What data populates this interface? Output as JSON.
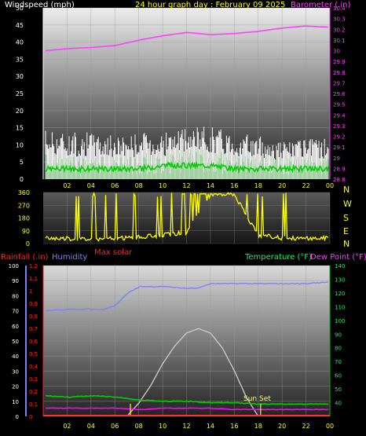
{
  "header": {
    "left_label": "Windspeed (mph)",
    "title": "24 hour graph day : February 09 2025",
    "right_label": "Barometer (.in)"
  },
  "colors": {
    "wind": "#ffffff",
    "gust_fill": "#c8c8c8",
    "avg_wind": "#00c800",
    "barometer": "#ff40ff",
    "direction": "#ffff00",
    "humidity": "#8080ff",
    "temperature": "#00c000",
    "dewpoint": "#ff00ff",
    "rain": "#ff3333",
    "solar": "#c8c8c8",
    "x_ticks": "#ffff00"
  },
  "chart_data": [
    {
      "type": "line",
      "id": "wind_baro",
      "xlabels": [
        "02",
        "04",
        "06",
        "08",
        "10",
        "12",
        "14",
        "16",
        "18",
        "20",
        "22",
        "00"
      ],
      "y_left": {
        "label": "Windspeed (mph)",
        "ticks": [
          0,
          5,
          10,
          15,
          20,
          25,
          30,
          35,
          40,
          45,
          50
        ],
        "lim": [
          0,
          50
        ]
      },
      "y_right": {
        "label": "Barometer (.in)",
        "ticks": [
          "28.8",
          "28.9",
          "29",
          "29.1",
          "29.2",
          "29.3",
          "29.4",
          "29.5",
          "29.6",
          "29.7",
          "29.8",
          "29.9",
          "30",
          "30.1",
          "30.2",
          "30.3",
          "30.4"
        ],
        "lim": [
          28.8,
          30.4
        ]
      },
      "series": [
        {
          "key": "gust",
          "x": [
            0,
            2,
            4,
            6,
            8,
            10,
            12,
            14,
            16,
            18,
            20,
            22,
            24
          ],
          "values": [
            13,
            12,
            12,
            11,
            12,
            12,
            13,
            14,
            12,
            11,
            10,
            10,
            11
          ]
        },
        {
          "key": "wind",
          "x": [
            0,
            2,
            4,
            6,
            8,
            10,
            12,
            14,
            16,
            18,
            20,
            22,
            24
          ],
          "values": [
            7,
            6,
            6,
            6,
            7,
            7,
            8,
            8,
            7,
            6,
            6,
            6,
            6
          ]
        },
        {
          "key": "avg_wind",
          "x": [
            0,
            2,
            4,
            6,
            8,
            10,
            12,
            14,
            16,
            18,
            20,
            22,
            24
          ],
          "values": [
            3,
            3,
            3,
            3,
            3,
            4,
            4,
            4,
            3,
            3,
            3,
            3,
            3
          ]
        },
        {
          "key": "barometer",
          "x": [
            0,
            2,
            4,
            6,
            8,
            10,
            12,
            14,
            16,
            18,
            20,
            22,
            24
          ],
          "values": [
            30.0,
            30.02,
            30.03,
            30.05,
            30.1,
            30.14,
            30.17,
            30.15,
            30.16,
            30.18,
            30.21,
            30.23,
            30.22
          ]
        }
      ]
    },
    {
      "type": "scatter",
      "id": "direction",
      "xlabels": [
        "02",
        "04",
        "06",
        "08",
        "10",
        "12",
        "14",
        "16",
        "18",
        "20",
        "22",
        "00"
      ],
      "y_left": {
        "ticks": [
          0,
          90,
          180,
          270,
          360
        ],
        "lim": [
          0,
          360
        ]
      },
      "y_right": {
        "ticks": [
          "N",
          "W",
          "S",
          "E",
          "N"
        ]
      },
      "series": [
        {
          "key": "direction",
          "x": [
            0,
            2,
            4,
            6,
            8,
            10,
            12,
            14,
            16,
            18,
            20,
            22,
            24
          ],
          "values": [
            40,
            35,
            30,
            35,
            45,
            60,
            80,
            340,
            350,
            60,
            40,
            35,
            40
          ]
        }
      ]
    },
    {
      "type": "line",
      "id": "temp_hum",
      "xlabels": [
        "02",
        "04",
        "06",
        "08",
        "10",
        "12",
        "14",
        "16",
        "18",
        "20",
        "22",
        "00"
      ],
      "y_left_rain": {
        "label": "Rainfall (.in)",
        "ticks": [
          "0",
          "0.1",
          "0.2",
          "0.3",
          "0.4",
          "0.5",
          "0.6",
          "0.7",
          "0.8",
          "0.9",
          "1",
          "1.1",
          "1.2"
        ],
        "lim": [
          0,
          1.2
        ]
      },
      "y_left_hum": {
        "label": "Humidity",
        "ticks": [
          0,
          10,
          20,
          30,
          40,
          50,
          60,
          70,
          80,
          90,
          100
        ],
        "lim": [
          0,
          100
        ]
      },
      "y_right": {
        "label": "Temperature (°F)",
        "label2": "Dew Point (°F)",
        "ticks": [
          40,
          50,
          60,
          70,
          80,
          90,
          100,
          110,
          120,
          130,
          140
        ],
        "lim": [
          30,
          140
        ]
      },
      "series": [
        {
          "key": "humidity",
          "x": [
            0,
            2,
            4,
            5,
            6,
            7,
            8,
            10,
            12,
            13,
            14,
            16,
            18,
            20,
            22,
            24
          ],
          "values": [
            70,
            71,
            71,
            71,
            74,
            82,
            86,
            86,
            85,
            85,
            88,
            88,
            88,
            88,
            88,
            89
          ]
        },
        {
          "key": "temperature",
          "x": [
            0,
            2,
            4,
            6,
            8,
            10,
            12,
            14,
            16,
            18,
            20,
            22,
            24
          ],
          "values": [
            45,
            44,
            45,
            44,
            42,
            41,
            41,
            40,
            40,
            39,
            39,
            39,
            39
          ]
        },
        {
          "key": "dewpoint",
          "x": [
            0,
            2,
            4,
            6,
            8,
            10,
            12,
            14,
            16,
            18,
            20,
            22,
            24
          ],
          "values": [
            36,
            36,
            36,
            36,
            35,
            36,
            36,
            36,
            35,
            35,
            35,
            35,
            35
          ]
        },
        {
          "key": "rain",
          "x": [
            0,
            24
          ],
          "values": [
            0,
            0
          ]
        },
        {
          "key": "solar",
          "x": [
            7,
            8,
            9,
            10,
            11,
            12,
            13,
            14,
            15,
            16,
            17,
            18
          ],
          "values": [
            0,
            15,
            35,
            60,
            80,
            95,
            100,
            95,
            78,
            52,
            22,
            0
          ]
        }
      ],
      "annotations": {
        "max_solar": "Max solar",
        "sun_set": "Sun Set",
        "sunrise_x": 7.3,
        "sunset_x": 18.2
      }
    }
  ]
}
